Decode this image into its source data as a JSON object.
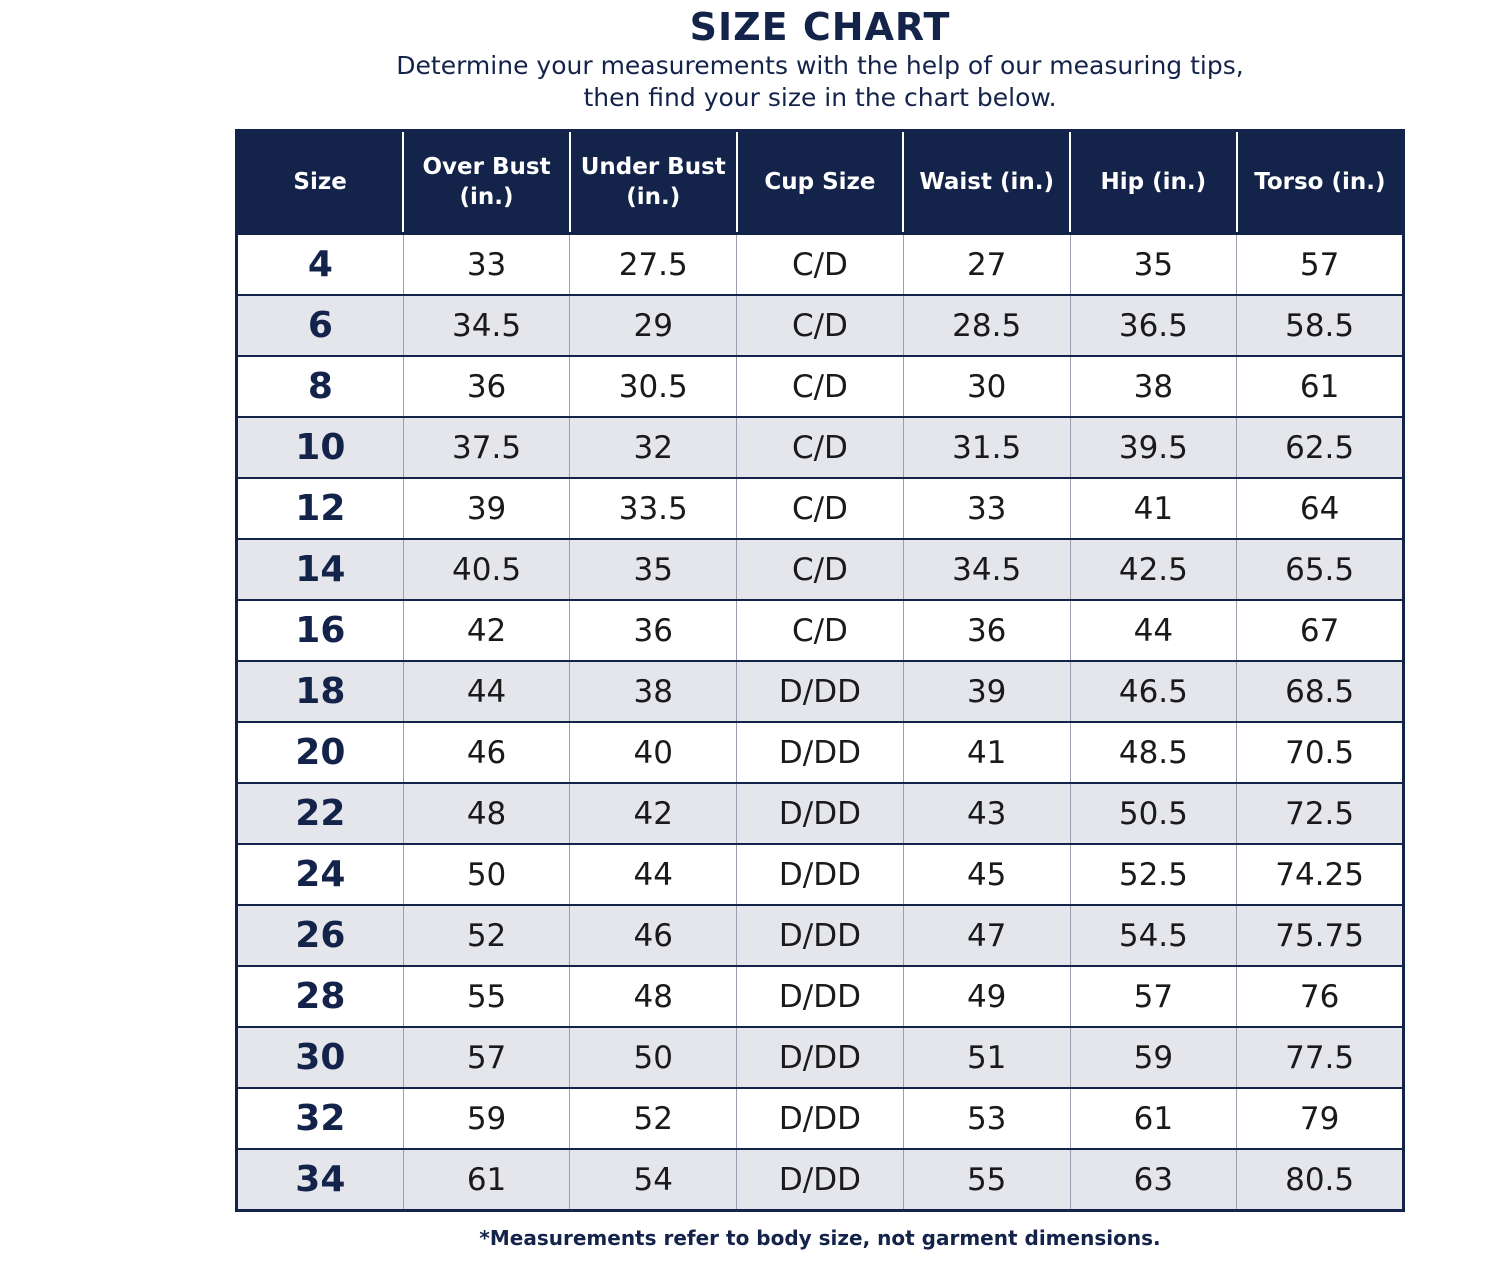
{
  "title": "SIZE CHART",
  "subtitle": {
    "line1": "Determine your measurements with the help of our measuring tips,",
    "line2": "then find your size in the chart below."
  },
  "table": {
    "headers": [
      {
        "line1": "Size",
        "line2": ""
      },
      {
        "line1": "Over Bust",
        "line2": "(in.)"
      },
      {
        "line1": "Under Bust",
        "line2": "(in.)"
      },
      {
        "line1": "Cup Size",
        "line2": ""
      },
      {
        "line1": "Waist (in.)",
        "line2": ""
      },
      {
        "line1": "Hip (in.)",
        "line2": ""
      },
      {
        "line1": "Torso (in.)",
        "line2": ""
      }
    ],
    "rows": [
      [
        "4",
        "33",
        "27.5",
        "C/D",
        "27",
        "35",
        "57"
      ],
      [
        "6",
        "34.5",
        "29",
        "C/D",
        "28.5",
        "36.5",
        "58.5"
      ],
      [
        "8",
        "36",
        "30.5",
        "C/D",
        "30",
        "38",
        "61"
      ],
      [
        "10",
        "37.5",
        "32",
        "C/D",
        "31.5",
        "39.5",
        "62.5"
      ],
      [
        "12",
        "39",
        "33.5",
        "C/D",
        "33",
        "41",
        "64"
      ],
      [
        "14",
        "40.5",
        "35",
        "C/D",
        "34.5",
        "42.5",
        "65.5"
      ],
      [
        "16",
        "42",
        "36",
        "C/D",
        "36",
        "44",
        "67"
      ],
      [
        "18",
        "44",
        "38",
        "D/DD",
        "39",
        "46.5",
        "68.5"
      ],
      [
        "20",
        "46",
        "40",
        "D/DD",
        "41",
        "48.5",
        "70.5"
      ],
      [
        "22",
        "48",
        "42",
        "D/DD",
        "43",
        "50.5",
        "72.5"
      ],
      [
        "24",
        "50",
        "44",
        "D/DD",
        "45",
        "52.5",
        "74.25"
      ],
      [
        "26",
        "52",
        "46",
        "D/DD",
        "47",
        "54.5",
        "75.75"
      ],
      [
        "28",
        "55",
        "48",
        "D/DD",
        "49",
        "57",
        "76"
      ],
      [
        "30",
        "57",
        "50",
        "D/DD",
        "51",
        "59",
        "77.5"
      ],
      [
        "32",
        "59",
        "52",
        "D/DD",
        "53",
        "61",
        "79"
      ],
      [
        "34",
        "61",
        "54",
        "D/DD",
        "55",
        "63",
        "80.5"
      ]
    ]
  },
  "footnote": "*Measurements refer to body size, not garment dimensions.",
  "colors": {
    "navy": "#14234a",
    "stripe": "#e4e6ec"
  }
}
